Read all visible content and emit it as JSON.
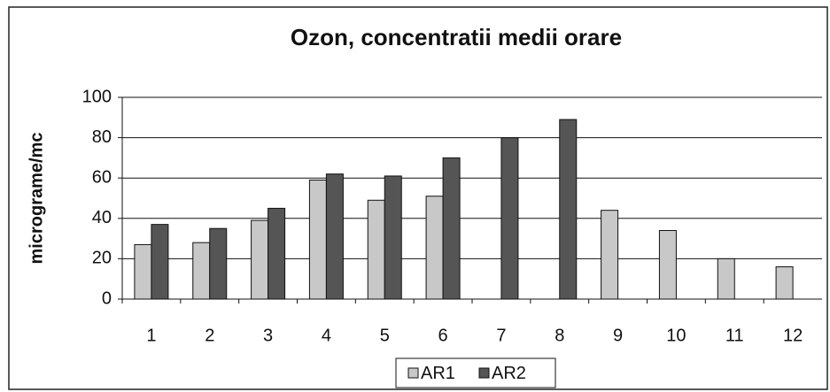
{
  "chart_data": {
    "type": "bar",
    "title": "Ozon, concentratii medii orare",
    "y_label": "micrograme/mc",
    "categories": [
      "1",
      "2",
      "3",
      "4",
      "5",
      "6",
      "7",
      "8",
      "9",
      "10",
      "11",
      "12"
    ],
    "series": [
      {
        "name": "AR1",
        "color": "#c8c8c8",
        "values": [
          27,
          28,
          39,
          59,
          49,
          51,
          null,
          null,
          44,
          34,
          20,
          16
        ]
      },
      {
        "name": "AR2",
        "color": "#555555",
        "values": [
          37,
          35,
          45,
          62,
          61,
          70,
          80,
          89,
          null,
          null,
          null,
          null
        ]
      }
    ],
    "ylim": [
      0,
      100
    ],
    "yticks": [
      0,
      20,
      40,
      60,
      80,
      100
    ],
    "grid": true,
    "legend": "bottom"
  }
}
